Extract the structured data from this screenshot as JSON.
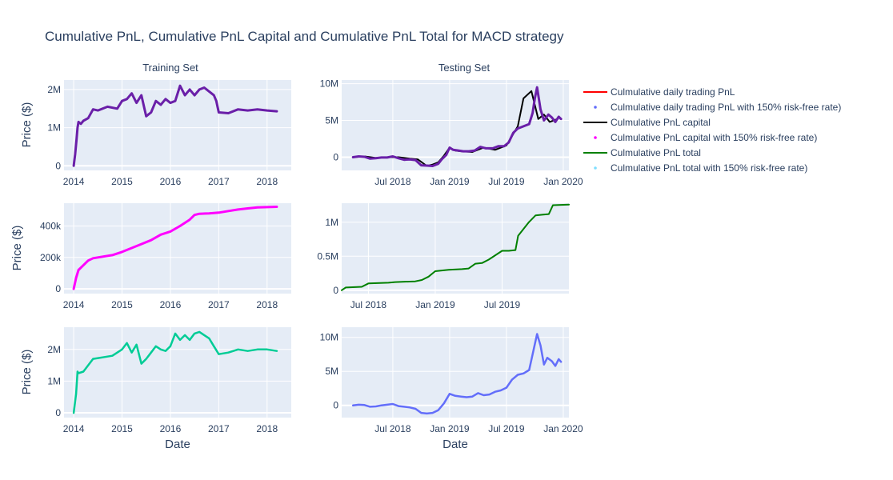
{
  "title": "Cumulative PnL, Cumulative PnL Capital and Cumulative PnL Total for MACD strategy",
  "subplot_titles": [
    "Training Set",
    "Testing Set"
  ],
  "ylabel": "Price ($)",
  "xlabel": "Date",
  "legend": [
    {
      "label": "Culmulative daily trading PnL",
      "color": "#ff0000",
      "kind": "line"
    },
    {
      "label": "Culmulative daily trading PnL with 150% risk-free rate)",
      "color": "#636efa",
      "kind": "dot"
    },
    {
      "label": "Culmulative PnL capital",
      "color": "#000000",
      "kind": "line"
    },
    {
      "label": "Culmulative PnL capital with 150% risk-free rate)",
      "color": "#ff00ff",
      "kind": "dot"
    },
    {
      "label": "Culmulative PnL total",
      "color": "#008000",
      "kind": "line"
    },
    {
      "label": "Culmulative PnL total with 150% risk-free rate)",
      "color": "#7fdfff",
      "kind": "dot"
    }
  ],
  "chart_data": [
    {
      "type": "line",
      "row": 1,
      "col": 1,
      "xlim": [
        2013.8,
        2018.5
      ],
      "ylim": [
        -120000,
        2250000
      ],
      "xticks": [
        {
          "v": 2014,
          "t": "2014"
        },
        {
          "v": 2015,
          "t": "2015"
        },
        {
          "v": 2016,
          "t": "2016"
        },
        {
          "v": 2017,
          "t": "2017"
        },
        {
          "v": 2018,
          "t": "2018"
        }
      ],
      "yticks": [
        {
          "v": 0,
          "t": "0"
        },
        {
          "v": 1000000,
          "t": "1M"
        },
        {
          "v": 2000000,
          "t": "2M"
        }
      ],
      "series": [
        {
          "name": "Culmulative daily trading PnL",
          "color": "#ff0000",
          "width": 2,
          "x": [
            2014.0,
            2014.03,
            2014.06,
            2014.08,
            2014.1
          ],
          "y": [
            0,
            300000,
            700000,
            1000000,
            1150000
          ]
        },
        {
          "name": "Culmulative daily trading PnL with 150% risk-free rate)",
          "color": "#6a1fa8",
          "width": 3,
          "x": [
            2014.0,
            2014.03,
            2014.06,
            2014.08,
            2014.1,
            2014.15,
            2014.2,
            2014.3,
            2014.4,
            2014.5,
            2014.7,
            2014.9,
            2015.0,
            2015.1,
            2015.2,
            2015.3,
            2015.4,
            2015.5,
            2015.6,
            2015.7,
            2015.8,
            2015.9,
            2016.0,
            2016.1,
            2016.2,
            2016.3,
            2016.4,
            2016.5,
            2016.6,
            2016.7,
            2016.8,
            2016.9,
            2016.95,
            2017.0,
            2017.2,
            2017.4,
            2017.6,
            2017.8,
            2018.0,
            2018.2
          ],
          "y": [
            0,
            300000,
            700000,
            1000000,
            1150000,
            1100000,
            1180000,
            1250000,
            1480000,
            1450000,
            1550000,
            1500000,
            1700000,
            1750000,
            1900000,
            1650000,
            1850000,
            1300000,
            1400000,
            1700000,
            1600000,
            1750000,
            1650000,
            1700000,
            2100000,
            1850000,
            2000000,
            1850000,
            2000000,
            2050000,
            1950000,
            1850000,
            1700000,
            1400000,
            1380000,
            1480000,
            1450000,
            1480000,
            1450000,
            1430000
          ]
        }
      ]
    },
    {
      "type": "line",
      "row": 1,
      "col": 2,
      "xlim": [
        2018.05,
        2020.05
      ],
      "ylim": [
        -1800000,
        10500000
      ],
      "xticks": [
        {
          "v": 2018.5,
          "t": "Jul 2018"
        },
        {
          "v": 2019.0,
          "t": "Jan 2019"
        },
        {
          "v": 2019.5,
          "t": "Jul 2019"
        },
        {
          "v": 2020.0,
          "t": "Jan 2020"
        }
      ],
      "yticks": [
        {
          "v": 0,
          "t": "0"
        },
        {
          "v": 5000000,
          "t": "5M"
        },
        {
          "v": 10000000,
          "t": "10M"
        }
      ],
      "series": [
        {
          "name": "Culmulative PnL capital",
          "color": "#000000",
          "width": 2,
          "x": [
            2018.15,
            2018.25,
            2018.35,
            2018.45,
            2018.55,
            2018.65,
            2018.72,
            2018.8,
            2018.85,
            2018.9,
            2018.95,
            2019.0,
            2019.05,
            2019.1,
            2019.2,
            2019.3,
            2019.4,
            2019.5,
            2019.6,
            2019.65,
            2019.72,
            2019.78,
            2019.83,
            2019.88,
            2019.95
          ],
          "y": [
            0,
            100000,
            -100000,
            0,
            0,
            -200000,
            -300000,
            -1200000,
            -1000000,
            -700000,
            200000,
            1300000,
            900000,
            800000,
            700000,
            1300000,
            1000000,
            1600000,
            4200000,
            8000000,
            9000000,
            5200000,
            5800000,
            4800000,
            5200000
          ]
        },
        {
          "name": "Culmulative PnL capital with 150% risk-free rate)",
          "color": "#6a1fa8",
          "width": 3,
          "x": [
            2018.15,
            2018.2,
            2018.25,
            2018.3,
            2018.35,
            2018.4,
            2018.45,
            2018.5,
            2018.55,
            2018.6,
            2018.65,
            2018.7,
            2018.75,
            2018.8,
            2018.85,
            2018.9,
            2018.93,
            2018.97,
            2019.0,
            2019.03,
            2019.08,
            2019.12,
            2019.17,
            2019.22,
            2019.27,
            2019.32,
            2019.38,
            2019.43,
            2019.48,
            2019.52,
            2019.56,
            2019.6,
            2019.65,
            2019.7,
            2019.73,
            2019.75,
            2019.77,
            2019.8,
            2019.83,
            2019.87,
            2019.9,
            2019.93,
            2019.96,
            2019.98
          ],
          "y": [
            0,
            100000,
            50000,
            -200000,
            -150000,
            -50000,
            -50000,
            100000,
            -150000,
            -350000,
            -300000,
            -400000,
            -1100000,
            -1150000,
            -1200000,
            -900000,
            -300000,
            300000,
            1300000,
            1000000,
            900000,
            800000,
            800000,
            900000,
            1400000,
            1200000,
            1200000,
            1500000,
            1500000,
            2000000,
            3300000,
            3900000,
            4200000,
            4500000,
            6000000,
            8000000,
            9500000,
            6500000,
            5000000,
            5800000,
            5400000,
            4800000,
            5500000,
            5200000
          ]
        }
      ]
    },
    {
      "type": "line",
      "row": 2,
      "col": 1,
      "xlim": [
        2013.8,
        2018.5
      ],
      "ylim": [
        -30000,
        545000
      ],
      "xticks": [
        {
          "v": 2014,
          "t": "2014"
        },
        {
          "v": 2015,
          "t": "2015"
        },
        {
          "v": 2016,
          "t": "2016"
        },
        {
          "v": 2017,
          "t": "2017"
        },
        {
          "v": 2018,
          "t": "2018"
        }
      ],
      "yticks": [
        {
          "v": 0,
          "t": "0"
        },
        {
          "v": 200000,
          "t": "200k"
        },
        {
          "v": 400000,
          "t": "400k"
        }
      ],
      "series": [
        {
          "name": "Culmulative PnL capital with 150% risk-free rate)",
          "color": "#ff00ff",
          "width": 3,
          "x": [
            2014.0,
            2014.05,
            2014.1,
            2014.2,
            2014.3,
            2014.4,
            2014.6,
            2014.8,
            2015.0,
            2015.2,
            2015.4,
            2015.6,
            2015.8,
            2016.0,
            2016.2,
            2016.4,
            2016.5,
            2016.6,
            2016.8,
            2017.0,
            2017.2,
            2017.4,
            2017.6,
            2017.8,
            2018.0,
            2018.2
          ],
          "y": [
            0,
            70000,
            120000,
            150000,
            180000,
            195000,
            205000,
            215000,
            235000,
            260000,
            285000,
            310000,
            345000,
            365000,
            400000,
            440000,
            470000,
            478000,
            480000,
            485000,
            495000,
            505000,
            512000,
            518000,
            520000,
            522000
          ]
        }
      ]
    },
    {
      "type": "line",
      "row": 2,
      "col": 2,
      "xlim": [
        2018.3,
        2020.0
      ],
      "ylim": [
        -50000,
        1280000
      ],
      "xticks": [
        {
          "v": 2018.5,
          "t": "Jul 2018"
        },
        {
          "v": 2019.0,
          "t": "Jan 2019"
        },
        {
          "v": 2019.5,
          "t": "Jul 2019"
        }
      ],
      "yticks": [
        {
          "v": 0,
          "t": "0"
        },
        {
          "v": 500000,
          "t": "0.5M"
        },
        {
          "v": 1000000,
          "t": "1M"
        }
      ],
      "series": [
        {
          "name": "Culmulative PnL total",
          "color": "#008000",
          "width": 2,
          "x": [
            2018.3,
            2018.33,
            2018.45,
            2018.5,
            2018.65,
            2018.7,
            2018.85,
            2018.9,
            2018.95,
            2019.0,
            2019.1,
            2019.2,
            2019.25,
            2019.3,
            2019.35,
            2019.4,
            2019.5,
            2019.55,
            2019.6,
            2019.62,
            2019.7,
            2019.75,
            2019.8,
            2019.85,
            2019.88,
            2020.0
          ],
          "y": [
            0,
            40000,
            50000,
            100000,
            110000,
            120000,
            130000,
            150000,
            200000,
            280000,
            300000,
            310000,
            320000,
            390000,
            400000,
            450000,
            580000,
            580000,
            590000,
            800000,
            1000000,
            1100000,
            1110000,
            1120000,
            1250000,
            1260000
          ]
        }
      ]
    },
    {
      "type": "line",
      "row": 3,
      "col": 1,
      "xlim": [
        2013.8,
        2018.5
      ],
      "ylim": [
        -150000,
        2700000
      ],
      "xticks": [
        {
          "v": 2014,
          "t": "2014"
        },
        {
          "v": 2015,
          "t": "2015"
        },
        {
          "v": 2016,
          "t": "2016"
        },
        {
          "v": 2017,
          "t": "2017"
        },
        {
          "v": 2018,
          "t": "2018"
        }
      ],
      "yticks": [
        {
          "v": 0,
          "t": "0"
        },
        {
          "v": 1000000,
          "t": "1M"
        },
        {
          "v": 2000000,
          "t": "2M"
        }
      ],
      "series": [
        {
          "name": "Culmulative PnL total with 150% risk-free rate)",
          "color": "#00cc96",
          "width": 2.5,
          "x": [
            2014.0,
            2014.05,
            2014.08,
            2014.1,
            2014.2,
            2014.3,
            2014.4,
            2014.6,
            2014.8,
            2015.0,
            2015.1,
            2015.2,
            2015.3,
            2015.4,
            2015.5,
            2015.6,
            2015.7,
            2015.8,
            2015.9,
            2016.0,
            2016.1,
            2016.2,
            2016.3,
            2016.4,
            2016.5,
            2016.6,
            2016.7,
            2016.8,
            2016.9,
            2017.0,
            2017.2,
            2017.4,
            2017.6,
            2017.8,
            2018.0,
            2018.2
          ],
          "y": [
            0,
            600000,
            1300000,
            1250000,
            1300000,
            1500000,
            1700000,
            1750000,
            1800000,
            2000000,
            2200000,
            1900000,
            2150000,
            1550000,
            1700000,
            1900000,
            2100000,
            2000000,
            1950000,
            2100000,
            2500000,
            2300000,
            2450000,
            2300000,
            2500000,
            2550000,
            2450000,
            2350000,
            2100000,
            1850000,
            1900000,
            2000000,
            1950000,
            2000000,
            2000000,
            1950000
          ]
        }
      ]
    },
    {
      "type": "line",
      "row": 3,
      "col": 2,
      "xlim": [
        2018.05,
        2020.05
      ],
      "ylim": [
        -1800000,
        11500000
      ],
      "xticks": [
        {
          "v": 2018.5,
          "t": "Jul 2018"
        },
        {
          "v": 2019.0,
          "t": "Jan 2019"
        },
        {
          "v": 2019.5,
          "t": "Jul 2019"
        },
        {
          "v": 2020.0,
          "t": "Jan 2020"
        }
      ],
      "yticks": [
        {
          "v": 0,
          "t": "0"
        },
        {
          "v": 5000000,
          "t": "5M"
        },
        {
          "v": 10000000,
          "t": "10M"
        }
      ],
      "series": [
        {
          "name": "",
          "color": "#636efa",
          "width": 2.5,
          "x": [
            2018.15,
            2018.2,
            2018.25,
            2018.3,
            2018.35,
            2018.4,
            2018.45,
            2018.5,
            2018.55,
            2018.6,
            2018.65,
            2018.7,
            2018.75,
            2018.8,
            2018.85,
            2018.9,
            2018.95,
            2019.0,
            2019.05,
            2019.1,
            2019.15,
            2019.2,
            2019.25,
            2019.3,
            2019.35,
            2019.4,
            2019.45,
            2019.5,
            2019.55,
            2019.6,
            2019.65,
            2019.7,
            2019.73,
            2019.75,
            2019.77,
            2019.8,
            2019.83,
            2019.86,
            2019.9,
            2019.93,
            2019.96,
            2019.98
          ],
          "y": [
            0,
            100000,
            50000,
            -200000,
            -150000,
            0,
            100000,
            200000,
            -100000,
            -200000,
            -300000,
            -500000,
            -1100000,
            -1200000,
            -1100000,
            -700000,
            300000,
            1700000,
            1400000,
            1300000,
            1200000,
            1300000,
            1800000,
            1500000,
            1600000,
            2000000,
            2200000,
            2600000,
            3800000,
            4500000,
            4700000,
            5200000,
            7500000,
            9000000,
            10500000,
            8800000,
            6000000,
            7000000,
            6500000,
            5800000,
            6800000,
            6400000
          ]
        }
      ]
    }
  ]
}
